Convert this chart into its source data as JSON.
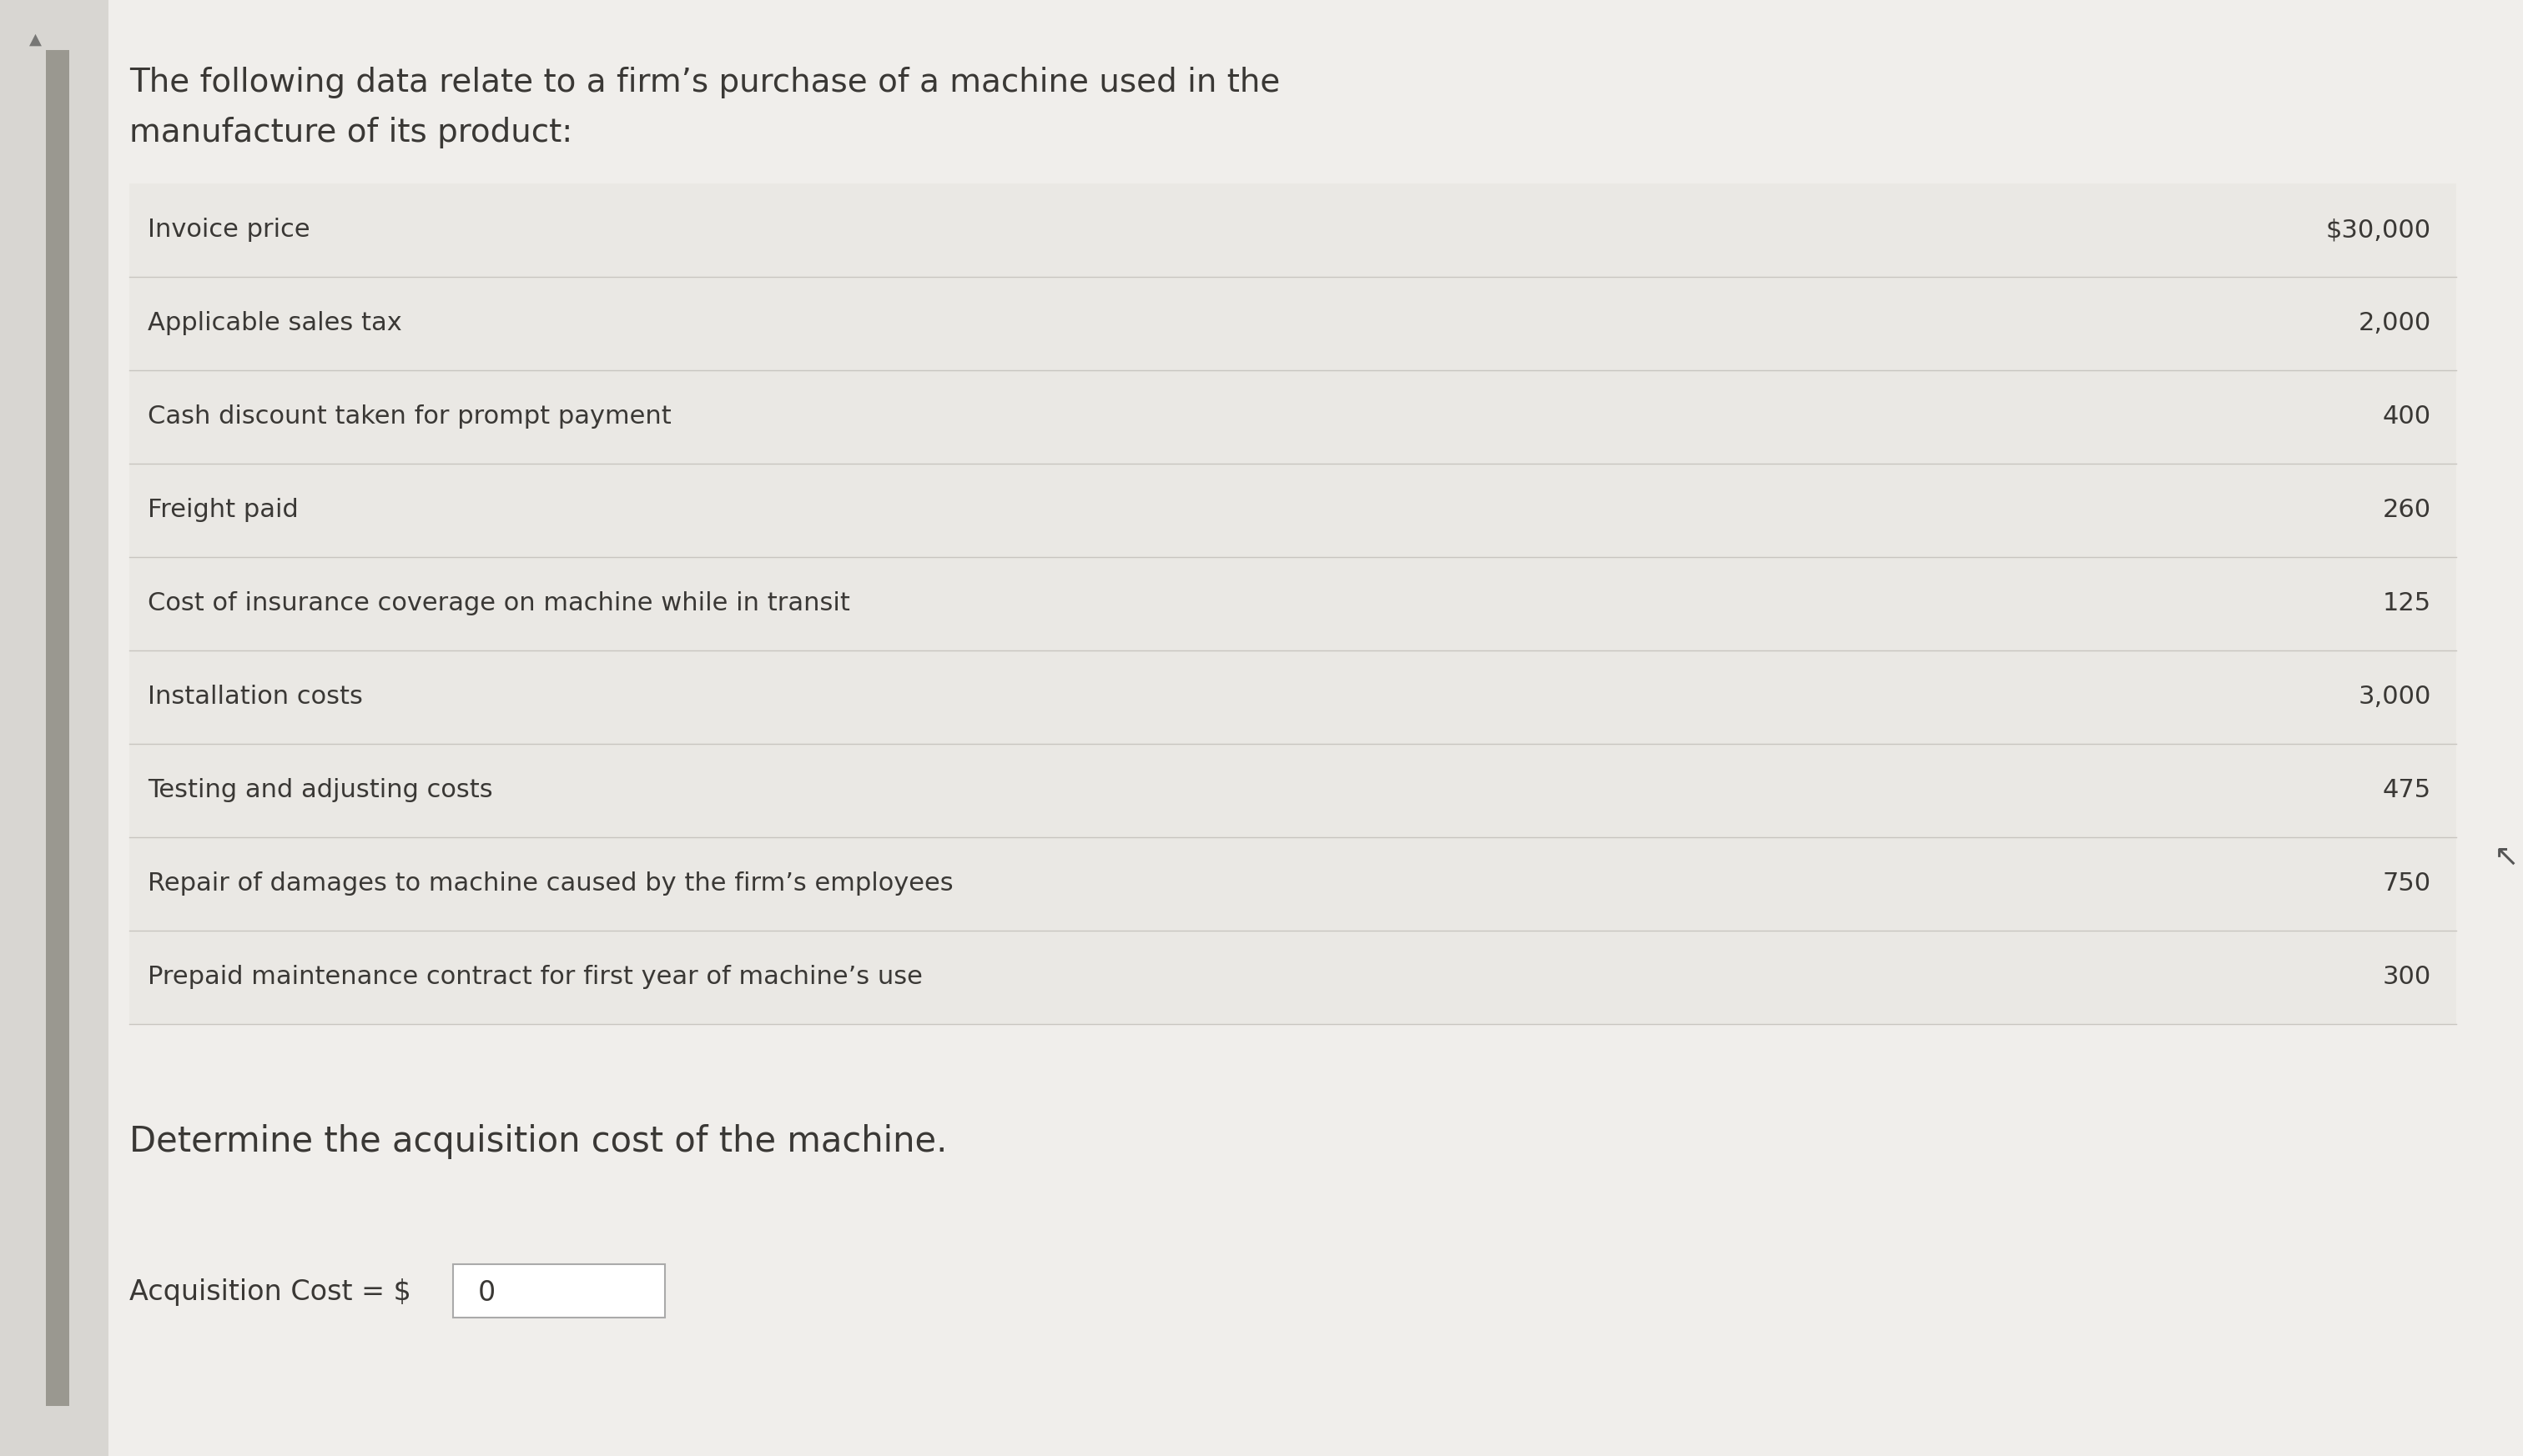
{
  "title_line1": "The following data relate to a firm’s purchase of a machine used in the",
  "title_line2": "manufacture of its product:",
  "rows": [
    {
      "label": "Invoice price",
      "value": "$30,000"
    },
    {
      "label": "Applicable sales tax",
      "value": "2,000"
    },
    {
      "label": "Cash discount taken for prompt payment",
      "value": "400"
    },
    {
      "label": "Freight paid",
      "value": "260"
    },
    {
      "label": "Cost of insurance coverage on machine while in transit",
      "value": "125"
    },
    {
      "label": "Installation costs",
      "value": "3,000"
    },
    {
      "label": "Testing and adjusting costs",
      "value": "475"
    },
    {
      "label": "Repair of damages to machine caused by the firm’s employees",
      "value": "750"
    },
    {
      "label": "Prepaid maintenance contract for first year of machine’s use",
      "value": "300"
    }
  ],
  "question": "Determine the acquisition cost of the machine.",
  "answer_label": "Acquisition Cost = $",
  "answer_value": "0",
  "page_bg": "#f0eeeb",
  "table_bg": "#eae8e4",
  "row_line_color": "#c8c5c0",
  "text_color": "#3a3835",
  "sidebar_dark": "#9a9890",
  "sidebar_light": "#d8d6d2",
  "title_fontsize": 28,
  "label_fontsize": 22,
  "value_fontsize": 22,
  "question_fontsize": 30,
  "answer_fontsize": 24,
  "answer_box_color": "#ffffff",
  "answer_box_edge": "#aaaaaa"
}
